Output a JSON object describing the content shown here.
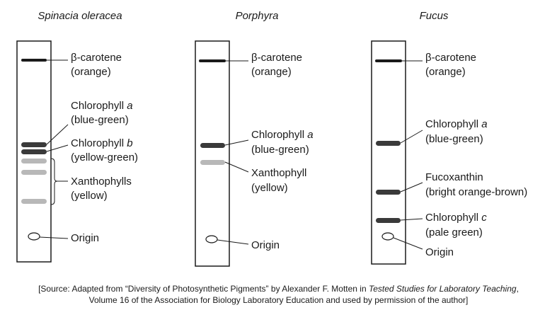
{
  "colors": {
    "band_dark": "#3a3a3a",
    "band_light": "#b8b8b8",
    "stroke": "#1a1a1a"
  },
  "strips": [
    {
      "title": "Spinacia oleracea",
      "labels": {
        "carotene": [
          "β-carotene",
          "(orange)"
        ],
        "chla": [
          "Chlorophyll ",
          "a",
          "(blue-green)"
        ],
        "chlb": [
          "Chlorophyll ",
          "b",
          "(yellow-green)"
        ],
        "xantho": [
          "Xanthophylls",
          "(yellow)"
        ],
        "origin": "Origin"
      }
    },
    {
      "title": "Porphyra",
      "labels": {
        "carotene": [
          "β-carotene",
          "(orange)"
        ],
        "chla": [
          "Chlorophyll ",
          "a",
          "(blue-green)"
        ],
        "xantho": [
          "Xanthophyll",
          "(yellow)"
        ],
        "origin": "Origin"
      }
    },
    {
      "title": "Fucus",
      "labels": {
        "carotene": [
          "β-carotene",
          "(orange)"
        ],
        "chla": [
          "Chlorophyll ",
          "a",
          "(blue-green)"
        ],
        "fuco": [
          "Fucoxanthin",
          "(bright orange-brown)"
        ],
        "chlc": [
          "Chlorophyll ",
          "c",
          "(pale green)"
        ],
        "origin": "Origin"
      }
    }
  ],
  "source": {
    "line1_a": "[Source: Adapted from “Diversity of Photosynthetic Pigments” by Alexander F. Motten in ",
    "line1_i": "Tested Studies for Laboratory Teaching",
    "line1_b": ",",
    "line2": "Volume 16 of the Association for Biology Laboratory Education and used by permission of the author]"
  }
}
